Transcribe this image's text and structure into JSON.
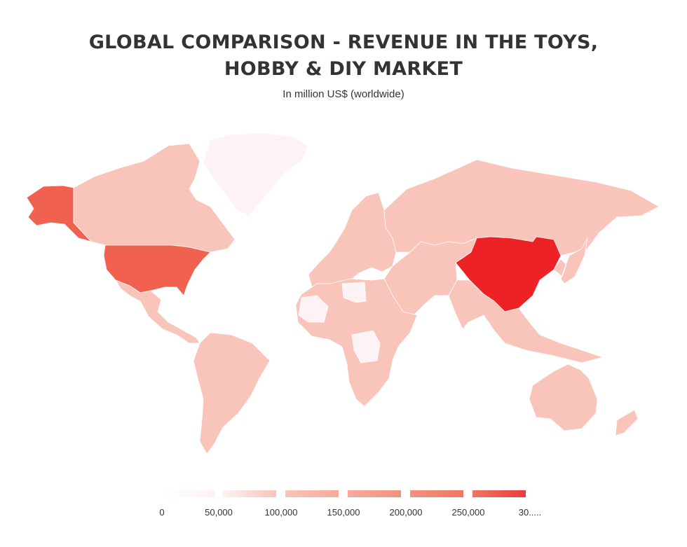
{
  "chart": {
    "title_line1": "GLOBAL COMPARISON - REVENUE IN THE TOYS,",
    "title_line2": "HOBBY & DIY MARKET",
    "subtitle": "In million US$ (worldwide)"
  },
  "chart_data": {
    "type": "choropleth",
    "title": "GLOBAL COMPARISON - REVENUE IN THE TOYS, HOBBY & DIY MARKET",
    "subtitle": "In million US$ (worldwide)",
    "scale_min": 0,
    "scale_max": 300000,
    "legend_bins": [
      {
        "label": "0",
        "color": "#fdf2f2"
      },
      {
        "label": "50,000",
        "color": "#f9c4ba"
      },
      {
        "label": "100,000",
        "color": "#f7aa9c"
      },
      {
        "label": "150,000",
        "color": "#f4917f"
      },
      {
        "label": "200,000",
        "color": "#f07662"
      },
      {
        "label": "250,000",
        "color": "#ec3b3b"
      },
      {
        "label": "30....."
      }
    ],
    "regions": [
      {
        "name": "China",
        "value": 280000,
        "color": "#ec2224"
      },
      {
        "name": "United States",
        "value": 220000,
        "color": "#f0624f"
      },
      {
        "name": "Alaska (United States)",
        "value": 220000,
        "color": "#f0624f"
      },
      {
        "name": "Canada",
        "value": 20000,
        "color": "#f9c4ba"
      },
      {
        "name": "Greenland",
        "value": 0,
        "color": "#fdf3f4"
      },
      {
        "name": "Mexico & Central America",
        "value": 15000,
        "color": "#f9c4ba"
      },
      {
        "name": "South America",
        "value": 15000,
        "color": "#f9c4ba"
      },
      {
        "name": "Europe",
        "value": 15000,
        "color": "#f9c4ba"
      },
      {
        "name": "Russia",
        "value": 15000,
        "color": "#f9c4ba"
      },
      {
        "name": "Middle East & Central Asia",
        "value": 10000,
        "color": "#f9c4ba"
      },
      {
        "name": "Africa",
        "value": 5000,
        "color": "#f9c4ba"
      },
      {
        "name": "South & Southeast Asia",
        "value": 15000,
        "color": "#f9c4ba"
      },
      {
        "name": "Japan & Korea",
        "value": 20000,
        "color": "#f9c4ba"
      },
      {
        "name": "Australia & Oceania",
        "value": 10000,
        "color": "#f9c4ba"
      },
      {
        "name": "Libya",
        "value": 0,
        "color": "#fdf3f4"
      },
      {
        "name": "Mali/Mauritania",
        "value": 0,
        "color": "#fdf3f4"
      },
      {
        "name": "DR Congo",
        "value": 0,
        "color": "#fdf3f4"
      }
    ]
  }
}
